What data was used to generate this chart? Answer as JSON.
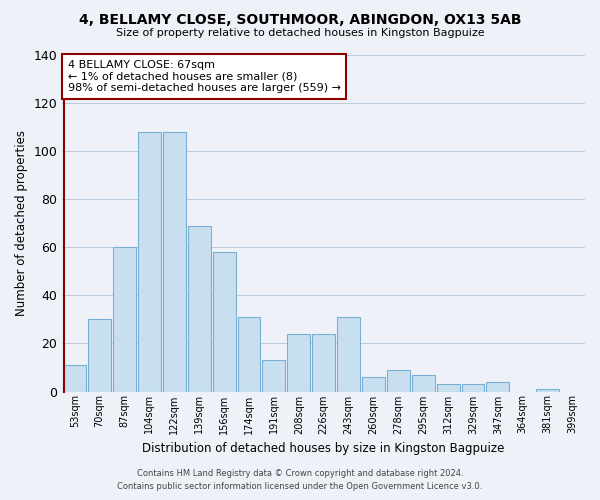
{
  "title": "4, BELLAMY CLOSE, SOUTHMOOR, ABINGDON, OX13 5AB",
  "subtitle": "Size of property relative to detached houses in Kingston Bagpuize",
  "xlabel": "Distribution of detached houses by size in Kingston Bagpuize",
  "ylabel": "Number of detached properties",
  "bar_color": "#c8dff0",
  "bar_edge_color": "#7aafd4",
  "annotation_line_color": "#8b0000",
  "bin_labels": [
    "53sqm",
    "70sqm",
    "87sqm",
    "104sqm",
    "122sqm",
    "139sqm",
    "156sqm",
    "174sqm",
    "191sqm",
    "208sqm",
    "226sqm",
    "243sqm",
    "260sqm",
    "278sqm",
    "295sqm",
    "312sqm",
    "329sqm",
    "347sqm",
    "364sqm",
    "381sqm",
    "399sqm"
  ],
  "bar_heights": [
    11,
    30,
    60,
    108,
    108,
    69,
    58,
    31,
    13,
    24,
    24,
    31,
    6,
    9,
    7,
    3,
    3,
    4,
    0,
    1,
    0
  ],
  "ylim": [
    0,
    140
  ],
  "yticks": [
    0,
    20,
    40,
    60,
    80,
    100,
    120,
    140
  ],
  "annotation_text_line1": "4 BELLAMY CLOSE: 67sqm",
  "annotation_text_line2": "← 1% of detached houses are smaller (8)",
  "annotation_text_line3": "98% of semi-detached houses are larger (559) →",
  "footer_line1": "Contains HM Land Registry data © Crown copyright and database right 2024.",
  "footer_line2": "Contains public sector information licensed under the Open Government Licence v3.0.",
  "background_color": "#eef2f8",
  "plot_bg_color": "#eef2f8",
  "grid_color": "#b0c4d8",
  "ann_box_facecolor": "#ffffff"
}
